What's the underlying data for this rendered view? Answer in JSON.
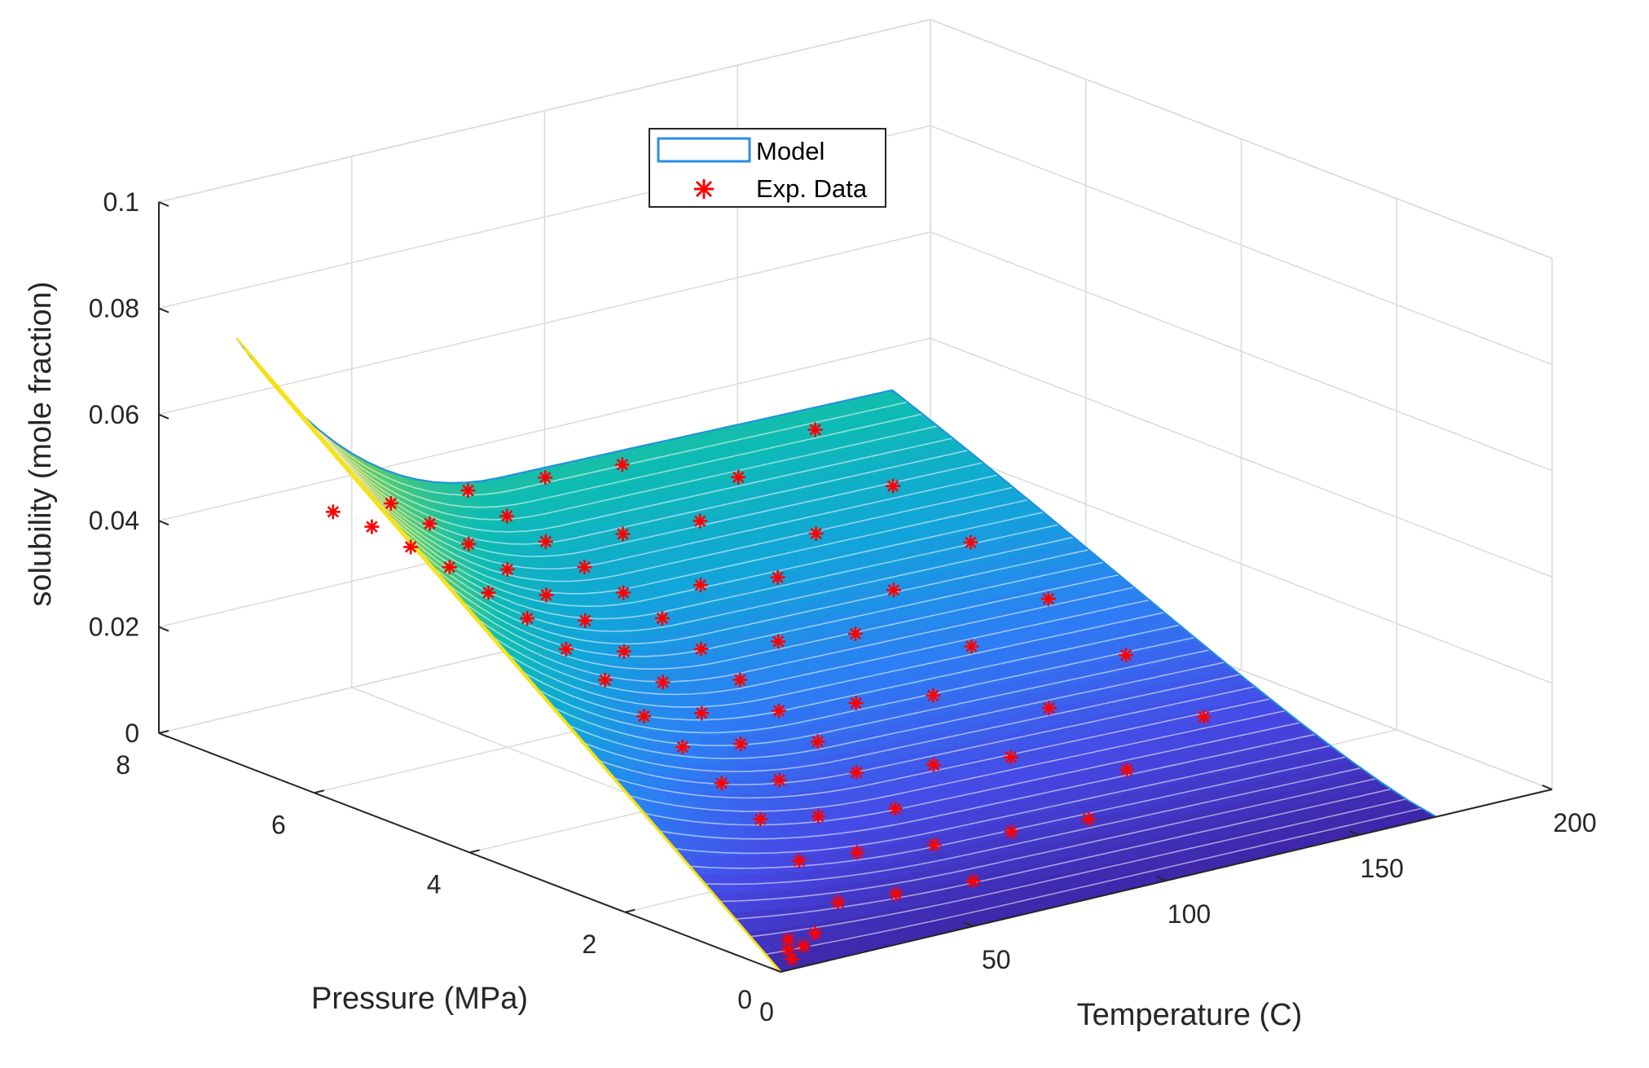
{
  "chart_data": {
    "type": "surface3d",
    "title": "",
    "xlabel": "Temperature (C)",
    "ylabel": "Pressure (MPa)",
    "zlabel": "solubility (mole fraction)",
    "xlim": [
      0,
      200
    ],
    "ylim": [
      0,
      8
    ],
    "zlim": [
      0,
      0.1
    ],
    "xticks": [
      0,
      50,
      100,
      150,
      200
    ],
    "yticks": [
      0,
      2,
      4,
      6,
      8
    ],
    "zticks": [
      0,
      0.02,
      0.04,
      0.06,
      0.08,
      0.1
    ],
    "xtick_labels": [
      "0",
      "50",
      "100",
      "150",
      "200"
    ],
    "ytick_labels": [
      "0",
      "2",
      "4",
      "6",
      "8"
    ],
    "ztick_labels": [
      "0",
      "0.02",
      "0.04",
      "0.06",
      "0.08",
      "0.1"
    ],
    "grid": true,
    "colormap": "parula",
    "surface_extent": {
      "x": [
        0,
        170
      ],
      "y": [
        0,
        7
      ]
    },
    "surface_corner_values": {
      "T0_P0": 0.0,
      "T0_P7": 0.08,
      "T70_P7": 0.042,
      "T170_P7": 0.041,
      "T170_P0": 0.0
    },
    "legend": {
      "position": "top-center",
      "entries": [
        {
          "label": "Model",
          "style": "surface"
        },
        {
          "label": "Exp. Data",
          "style": "marker-asterisk",
          "color": "#ff0000"
        }
      ]
    },
    "series": [
      {
        "name": "Exp. Data",
        "marker": "*",
        "color": "#ff0000",
        "points": [
          [
            25,
            0.5,
            0.006
          ],
          [
            25,
            1.0,
            0.011
          ],
          [
            25,
            1.5,
            0.016
          ],
          [
            25,
            2.0,
            0.02
          ],
          [
            25,
            2.5,
            0.024
          ],
          [
            25,
            3.0,
            0.027
          ],
          [
            25,
            3.5,
            0.031
          ],
          [
            25,
            4.0,
            0.034
          ],
          [
            25,
            4.5,
            0.037
          ],
          [
            25,
            5.0,
            0.039
          ],
          [
            25,
            5.5,
            0.041
          ],
          [
            25,
            6.0,
            0.042
          ],
          [
            25,
            6.5,
            0.043
          ],
          [
            25,
            7.0,
            0.043
          ],
          [
            40,
            0.5,
            0.005
          ],
          [
            40,
            1.0,
            0.01
          ],
          [
            40,
            1.5,
            0.014
          ],
          [
            40,
            2.0,
            0.018
          ],
          [
            40,
            2.5,
            0.022
          ],
          [
            40,
            3.0,
            0.025
          ],
          [
            40,
            3.5,
            0.028
          ],
          [
            40,
            4.0,
            0.031
          ],
          [
            40,
            4.5,
            0.034
          ],
          [
            40,
            5.0,
            0.036
          ],
          [
            40,
            5.5,
            0.038
          ],
          [
            40,
            6.0,
            0.04
          ],
          [
            40,
            6.5,
            0.041
          ],
          [
            40,
            7.0,
            0.042
          ],
          [
            60,
            0.5,
            0.004
          ],
          [
            60,
            1.0,
            0.008
          ],
          [
            60,
            1.5,
            0.012
          ],
          [
            60,
            2.0,
            0.016
          ],
          [
            60,
            2.5,
            0.019
          ],
          [
            60,
            3.0,
            0.022
          ],
          [
            60,
            3.5,
            0.025
          ],
          [
            60,
            4.0,
            0.028
          ],
          [
            60,
            4.5,
            0.031
          ],
          [
            60,
            5.0,
            0.033
          ],
          [
            60,
            5.5,
            0.035
          ],
          [
            60,
            6.0,
            0.037
          ],
          [
            60,
            6.5,
            0.039
          ],
          [
            60,
            7.0,
            0.041
          ],
          [
            80,
            1.0,
            0.007
          ],
          [
            80,
            2.0,
            0.014
          ],
          [
            80,
            3.0,
            0.02
          ],
          [
            80,
            4.0,
            0.026
          ],
          [
            80,
            5.0,
            0.031
          ],
          [
            80,
            6.0,
            0.035
          ],
          [
            80,
            7.0,
            0.04
          ],
          [
            100,
            1.0,
            0.006
          ],
          [
            100,
            2.0,
            0.012
          ],
          [
            100,
            3.0,
            0.018
          ],
          [
            100,
            4.0,
            0.024
          ],
          [
            100,
            5.0,
            0.029
          ],
          [
            100,
            6.0,
            0.034
          ],
          [
            100,
            7.0,
            0.039
          ],
          [
            120,
            1.5,
            0.009
          ],
          [
            120,
            2.5,
            0.015
          ],
          [
            120,
            3.5,
            0.021
          ],
          [
            120,
            4.5,
            0.026
          ],
          [
            120,
            5.5,
            0.031
          ],
          [
            120,
            6.5,
            0.036
          ],
          [
            150,
            2.0,
            0.011
          ],
          [
            150,
            3.0,
            0.017
          ],
          [
            150,
            4.0,
            0.022
          ],
          [
            150,
            5.0,
            0.027
          ],
          [
            150,
            6.0,
            0.032
          ],
          [
            150,
            7.0,
            0.037
          ],
          [
            5,
            0.1,
            0.001
          ],
          [
            6,
            0.2,
            0.002
          ],
          [
            8,
            0.3,
            0.003
          ],
          [
            10,
            0.2,
            0.002
          ],
          [
            15,
            0.3,
            0.003
          ]
        ]
      }
    ]
  }
}
